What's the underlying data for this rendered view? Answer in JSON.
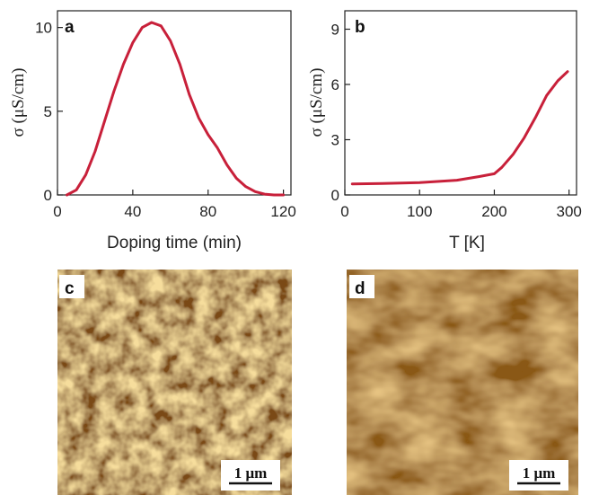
{
  "chart_data": [
    {
      "panel": "a",
      "type": "line",
      "xlabel": "Doping time (min)",
      "ylabel": "σ (μS/cm)",
      "xlim": [
        0,
        124
      ],
      "ylim": [
        0,
        11
      ],
      "xticks": [
        0,
        40,
        80,
        120
      ],
      "yticks": [
        0,
        5,
        10
      ],
      "color": "#c8203a",
      "series": [
        {
          "x": [
            5,
            10,
            15,
            20,
            25,
            30,
            35,
            40,
            45,
            50,
            55,
            60,
            65,
            70,
            75,
            80,
            85,
            90,
            95,
            100,
            105,
            110,
            115,
            120
          ],
          "y": [
            0.0,
            0.3,
            1.2,
            2.6,
            4.4,
            6.2,
            7.8,
            9.1,
            10.0,
            10.3,
            10.1,
            9.2,
            7.8,
            6.0,
            4.6,
            3.6,
            2.8,
            1.8,
            1.0,
            0.5,
            0.2,
            0.05,
            0.0,
            0.0
          ]
        }
      ],
      "grid": false
    },
    {
      "panel": "b",
      "type": "line",
      "xlabel": "T [K]",
      "ylabel": "σ (μS/cm)",
      "xlim": [
        0,
        310
      ],
      "ylim": [
        0,
        10
      ],
      "xticks": [
        0,
        100,
        200,
        300
      ],
      "yticks": [
        0,
        3,
        6,
        9
      ],
      "color": "#c8203a",
      "series": [
        {
          "x": [
            10,
            50,
            100,
            150,
            180,
            200,
            210,
            225,
            240,
            255,
            270,
            285,
            298
          ],
          "y": [
            0.6,
            0.62,
            0.67,
            0.8,
            1.0,
            1.15,
            1.5,
            2.2,
            3.1,
            4.2,
            5.4,
            6.2,
            6.7
          ]
        }
      ],
      "grid": false
    }
  ],
  "images": [
    {
      "panel": "c",
      "scalebar": "1 μm"
    },
    {
      "panel": "d",
      "scalebar": "1 μm"
    }
  ]
}
